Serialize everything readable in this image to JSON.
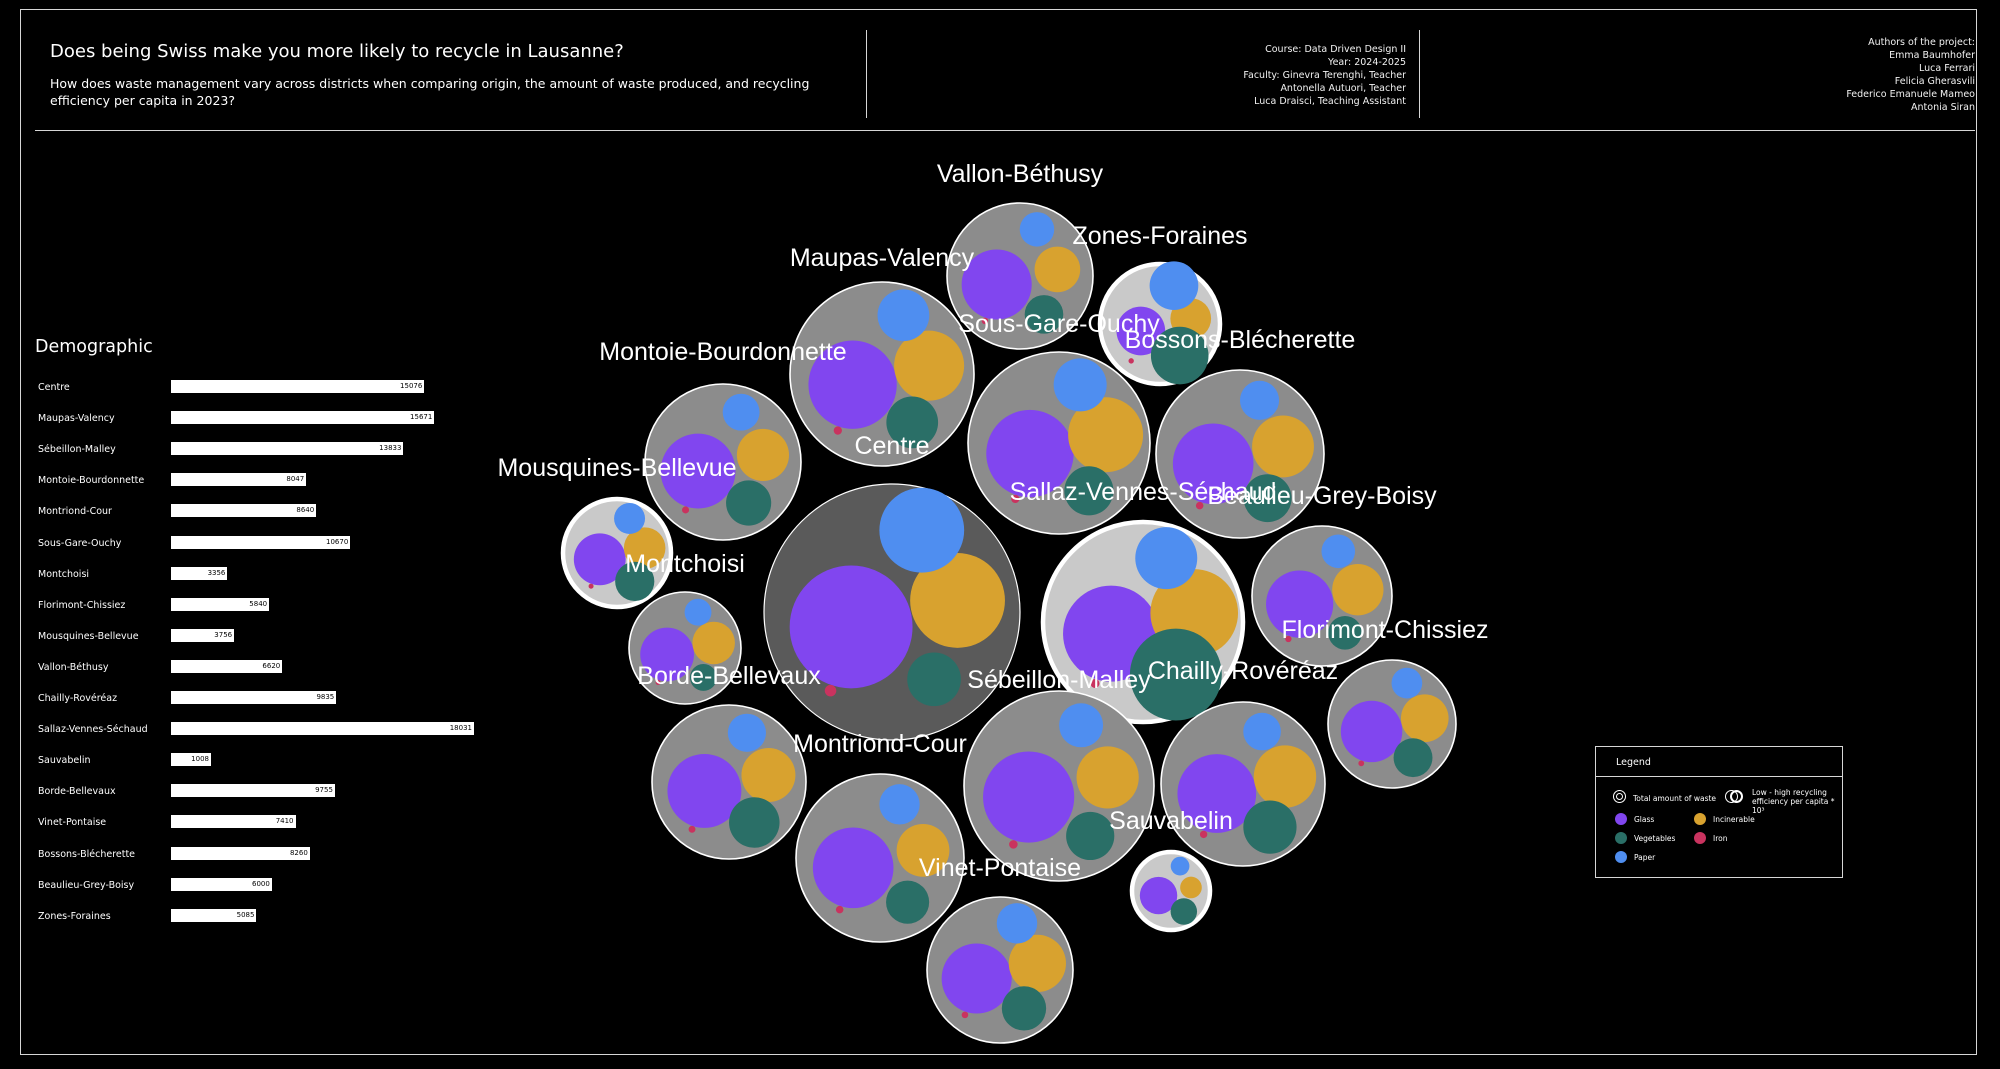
{
  "header": {
    "title": "Does being Swiss make you more likely to recycle in Lausanne?",
    "subtitle": "How does waste management vary across districts when comparing origin, the amount of waste produced, and recycling efficiency per capita in 2023?",
    "course_lines": [
      "Course: Data Driven Design II",
      "Year: 2024-2025",
      "Faculty: Ginevra Terenghi, Teacher",
      "Antonella Autuori, Teacher",
      "Luca Draisci, Teaching Assistant"
    ],
    "authors_lines": [
      "Authors of the project:",
      "Emma Baumhofer",
      "Luca Ferrari",
      "Felicia Gherasvili",
      "Federico Emanuele Mameo",
      "Antonia Siran"
    ]
  },
  "colors": {
    "background": "#000000",
    "glass": "#8146ef",
    "incinerable": "#d8a22f",
    "vegetables": "#2a6f67",
    "iron": "#c9335f",
    "paper": "#4f8ef0",
    "bubble_low": "#5a5a5a",
    "bubble_mid": "#8c8c8c",
    "bubble_high": "#c9c9c9"
  },
  "legend": {
    "title": "Legend",
    "total_waste": "Total amount of waste",
    "efficiency": "Low - high recycling efficiency per capita * 10³",
    "items": [
      {
        "label": "Glass",
        "color": "#8146ef"
      },
      {
        "label": "Incinerable",
        "color": "#d8a22f"
      },
      {
        "label": "Vegetables",
        "color": "#2a6f67"
      },
      {
        "label": "Iron",
        "color": "#c9335f"
      },
      {
        "label": "Paper",
        "color": "#4f8ef0"
      }
    ]
  },
  "chart_data": [
    {
      "type": "bar",
      "title": "Demographic",
      "categories": [
        "Centre",
        "Maupas-Valency",
        "Sébeillon-Malley",
        "Montoie-Bourdonnette",
        "Montriond-Cour",
        "Sous-Gare-Ouchy",
        "Montchoisi",
        "Florimont-Chissiez",
        "Mousquines-Bellevue",
        "Vallon-Béthusy",
        "Chailly-Rovéréaz",
        "Sallaz-Vennes-Séchaud",
        "Sauvabelin",
        "Borde-Bellevaux",
        "Vinet-Pontaise",
        "Bossons-Blécherette",
        "Beaulieu-Grey-Boisy",
        "Zones-Foraines"
      ],
      "values": [
        15076,
        15671,
        13833,
        8047,
        8640,
        10670,
        3356,
        5840,
        3756,
        6620,
        9835,
        18031,
        1008,
        9755,
        7410,
        8260,
        6000,
        5085
      ],
      "value_labels": [
        "15076",
        "15671",
        "13833",
        "8047",
        "8640",
        "10670",
        "3356",
        "5840",
        "3756",
        "6620",
        "9835",
        "18031",
        "1008",
        "9755",
        "7410",
        "8260",
        "6000",
        "5085"
      ]
    },
    {
      "type": "bubble",
      "title": "",
      "districts": [
        {
          "name": "Centre",
          "total": 100,
          "efficiency": "low",
          "glass": 42,
          "incinerable": 25,
          "paper": 20,
          "vegetables": 8,
          "iron": 1
        },
        {
          "name": "Maupas-Valency",
          "total": 45,
          "efficiency": "mid",
          "glass": 35,
          "incinerable": 22,
          "paper": 12,
          "vegetables": 12,
          "iron": 1
        },
        {
          "name": "Vallon-Béthusy",
          "total": 30,
          "efficiency": "mid",
          "glass": 33,
          "incinerable": 14,
          "paper": 8,
          "vegetables": 10,
          "iron": 1
        },
        {
          "name": "Zones-Foraines",
          "total": 18,
          "efficiency": "high",
          "glass": 10,
          "incinerable": 7,
          "paper": 10,
          "vegetables": 14,
          "iron": 1
        },
        {
          "name": "Montoie-Bourdonnette",
          "total": 36,
          "efficiency": "mid",
          "glass": 33,
          "incinerable": 16,
          "paper": 8,
          "vegetables": 12,
          "iron": 1
        },
        {
          "name": "Sous-Gare-Ouchy",
          "total": 45,
          "efficiency": "mid",
          "glass": 38,
          "incinerable": 28,
          "paper": 14,
          "vegetables": 12,
          "iron": 1
        },
        {
          "name": "Bossons-Blécherette",
          "total": 38,
          "efficiency": "mid",
          "glass": 34,
          "incinerable": 20,
          "paper": 8,
          "vegetables": 12,
          "iron": 1
        },
        {
          "name": "Mousquines-Bellevue",
          "total": 15,
          "efficiency": "high",
          "glass": 14,
          "incinerable": 9,
          "paper": 5,
          "vegetables": 8,
          "iron": 1
        },
        {
          "name": "Montchoisi",
          "total": 16,
          "efficiency": "mid",
          "glass": 16,
          "incinerable": 10,
          "paper": 4,
          "vegetables": 4,
          "iron": 1
        },
        {
          "name": "Sallaz-Vennes-Séchaud",
          "total": 54,
          "efficiency": "high",
          "glass": 24,
          "incinerable": 20,
          "paper": 10,
          "vegetables": 22,
          "iron": 1
        },
        {
          "name": "Beaulieu-Grey-Boisy",
          "total": 27,
          "efficiency": "mid",
          "glass": 24,
          "incinerable": 14,
          "paper": 6,
          "vegetables": 6,
          "iron": 1
        },
        {
          "name": "Florimont-Chissiez",
          "total": 23,
          "efficiency": "mid",
          "glass": 20,
          "incinerable": 12,
          "paper": 5,
          "vegetables": 8,
          "iron": 1
        },
        {
          "name": "Chailly-Rovéréaz",
          "total": 37,
          "efficiency": "mid",
          "glass": 35,
          "incinerable": 22,
          "paper": 8,
          "vegetables": 16,
          "iron": 1
        },
        {
          "name": "Borde-Bellevaux",
          "total": 32,
          "efficiency": "mid",
          "glass": 30,
          "incinerable": 16,
          "paper": 8,
          "vegetables": 14,
          "iron": 1
        },
        {
          "name": "Montriond-Cour",
          "total": 50,
          "efficiency": "mid",
          "glass": 56,
          "incinerable": 24,
          "paper": 14,
          "vegetables": 16,
          "iron": 1
        },
        {
          "name": "Sébeillon-Malley",
          "total": 37,
          "efficiency": "mid",
          "glass": 43,
          "incinerable": 20,
          "paper": 10,
          "vegetables": 12,
          "iron": 1
        },
        {
          "name": "Vinet-Pontaise",
          "total": 30,
          "efficiency": "mid",
          "glass": 30,
          "incinerable": 20,
          "paper": 10,
          "vegetables": 12,
          "iron": 1
        },
        {
          "name": "Sauvabelin",
          "total": 8,
          "efficiency": "high",
          "glass": 6,
          "incinerable": 2,
          "paper": 1.5,
          "vegetables": 3,
          "iron": 0
        }
      ]
    }
  ]
}
